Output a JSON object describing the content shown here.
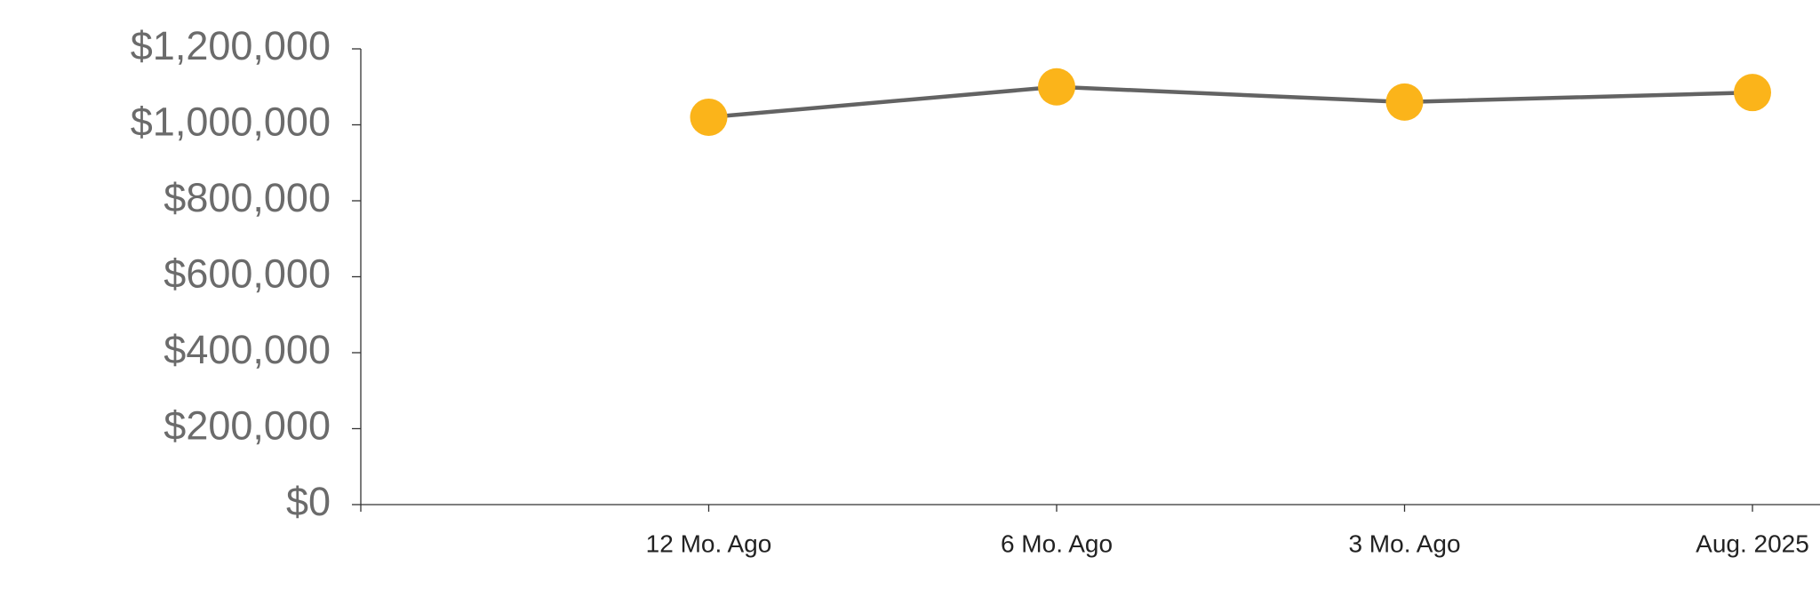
{
  "chart_data": {
    "type": "line",
    "categories": [
      "12 Mo. Ago",
      "6 Mo. Ago",
      "3 Mo. Ago",
      "Aug. 2025"
    ],
    "series": [
      {
        "values": [
          1020000,
          1100000,
          1060000,
          1085000
        ],
        "color": "#636363",
        "marker_color": "#fbb41a"
      }
    ],
    "ylim": [
      0,
      1200000
    ],
    "yticks": [
      {
        "value": 0,
        "label": "$0"
      },
      {
        "value": 200000,
        "label": "$200,000"
      },
      {
        "value": 400000,
        "label": "$400,000"
      },
      {
        "value": 600000,
        "label": "$600,000"
      },
      {
        "value": 800000,
        "label": "$800,000"
      },
      {
        "value": 1000000,
        "label": "$1,000,000"
      },
      {
        "value": 1200000,
        "label": "$1,200,000"
      }
    ]
  }
}
